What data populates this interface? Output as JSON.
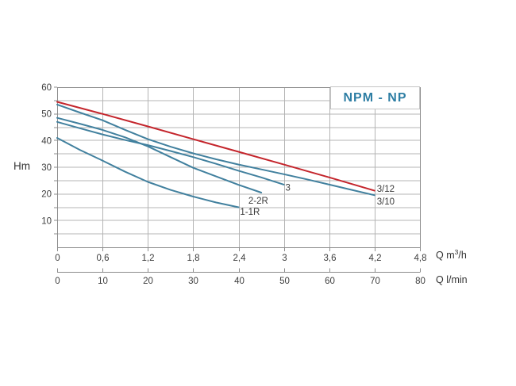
{
  "title": "NPM - NP",
  "colors": {
    "blue_curve": "#41809e",
    "red_curve": "#c4252c",
    "grid": "#b4b4b4",
    "axis": "#8c8c8c",
    "tick_text": "#3d3d3d",
    "title_text": "#2e7ea4",
    "title_box_border": "#c4c4c4",
    "curve_label_text": "#3a3a3a"
  },
  "chart_data": {
    "type": "line",
    "title": "NPM - NP",
    "ylabel": "Hm",
    "ylim": [
      0,
      60
    ],
    "y_grid_step": 5,
    "y_tick_step": 5,
    "y_tick_labels": [
      "10",
      "20",
      "30",
      "40",
      "50",
      "60"
    ],
    "y_label_step": 10,
    "grid": true,
    "x_axes": [
      {
        "unit_prefix": "Q m",
        "unit_sup": "3",
        "unit_suffix": "/h",
        "max": 4.8,
        "tick_step": 0.6,
        "tick_labels": [
          "0",
          "0,6",
          "1,2",
          "1,8",
          "2,4",
          "3",
          "3,6",
          "4,2",
          "4,8"
        ]
      },
      {
        "unit": "Q l/min",
        "max": 80,
        "tick_step": 10,
        "tick_labels": [
          "0",
          "10",
          "20",
          "30",
          "40",
          "50",
          "60",
          "70",
          "80"
        ]
      }
    ],
    "series": [
      {
        "name": "1-1R",
        "color": "blue_curve",
        "points": [
          [
            0,
            41
          ],
          [
            0.3,
            36.5
          ],
          [
            0.6,
            32.5
          ],
          [
            0.9,
            28.3
          ],
          [
            1.2,
            24.5
          ],
          [
            1.5,
            21.5
          ],
          [
            1.8,
            19
          ],
          [
            2.1,
            16.8
          ],
          [
            2.4,
            15
          ]
        ],
        "label": {
          "text": "1-1R",
          "q": 2.42,
          "h": 12.2,
          "anchor": "start"
        }
      },
      {
        "name": "2-2R",
        "color": "blue_curve",
        "points": [
          [
            0,
            48.5
          ],
          [
            0.3,
            46.3
          ],
          [
            0.6,
            44
          ],
          [
            0.9,
            41.2
          ],
          [
            1.2,
            37.8
          ],
          [
            1.5,
            33.8
          ],
          [
            1.8,
            29.8
          ],
          [
            2.1,
            26.6
          ],
          [
            2.4,
            23.4
          ],
          [
            2.7,
            20.5
          ]
        ],
        "label": {
          "text": "2-2R",
          "q": 2.53,
          "h": 16.4,
          "anchor": "start"
        }
      },
      {
        "name": "3",
        "color": "blue_curve",
        "points": [
          [
            0,
            47
          ],
          [
            0.3,
            44.6
          ],
          [
            0.6,
            42.3
          ],
          [
            0.9,
            40.2
          ],
          [
            1.2,
            38.3
          ],
          [
            1.5,
            36.1
          ],
          [
            1.8,
            33.8
          ],
          [
            2.1,
            31.3
          ],
          [
            2.4,
            28.7
          ],
          [
            2.7,
            26.2
          ],
          [
            3.0,
            23.5
          ]
        ],
        "label": {
          "text": "3",
          "q": 3.02,
          "h": 21.2,
          "anchor": "start"
        }
      },
      {
        "name": "3/10",
        "color": "blue_curve",
        "points": [
          [
            0,
            53.5
          ],
          [
            0.3,
            50.5
          ],
          [
            0.6,
            47.6
          ],
          [
            0.9,
            44
          ],
          [
            1.2,
            40.5
          ],
          [
            1.5,
            37.7
          ],
          [
            1.8,
            35.2
          ],
          [
            2.1,
            33
          ],
          [
            2.4,
            31
          ],
          [
            2.7,
            29.2
          ],
          [
            3.0,
            27.4
          ],
          [
            3.3,
            25.5
          ],
          [
            3.6,
            23.5
          ],
          [
            3.9,
            21.5
          ],
          [
            4.2,
            19.5
          ]
        ],
        "label": {
          "text": "3/10",
          "q": 4.23,
          "h": 16.0,
          "anchor": "start"
        }
      },
      {
        "name": "3/12",
        "color": "red_curve",
        "points": [
          [
            0,
            54.5
          ],
          [
            0.6,
            50
          ],
          [
            1.2,
            45.3
          ],
          [
            1.8,
            40.5
          ],
          [
            2.4,
            35.8
          ],
          [
            3.0,
            31
          ],
          [
            3.6,
            26.2
          ],
          [
            4.2,
            21.2
          ]
        ],
        "label": {
          "text": "3/12",
          "q": 4.23,
          "h": 20.8,
          "anchor": "start"
        }
      }
    ]
  }
}
